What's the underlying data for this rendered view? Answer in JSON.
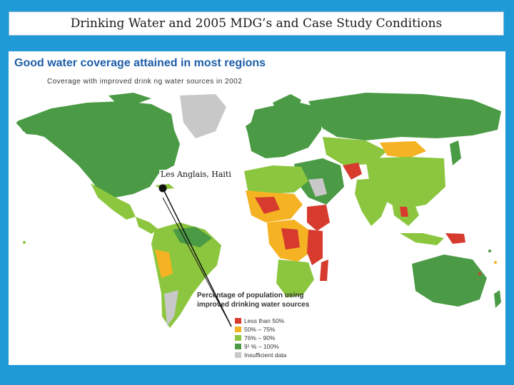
{
  "slide": {
    "title": "Drinking Water and 2005 MDG’s and Case Study Conditions"
  },
  "map": {
    "heading": "Good water coverage attained in most regions",
    "subheading": "Coverage with improved drink ng water sources in 2002",
    "case_study_label": "Les Anglais, Haiti",
    "legend": {
      "title_line1": "Percentage of population using",
      "title_line2": "improved drinking water sources",
      "items": [
        {
          "label": "Less than 50%",
          "color": "#d63b2e"
        },
        {
          "label": "50% – 75%",
          "color": "#f5b324"
        },
        {
          "label": "76% – 90%",
          "color": "#8cc63e"
        },
        {
          "label": "9¹ % – 100%",
          "color": "#4b9a45"
        },
        {
          "label": "Insufficient data",
          "color": "#c8c8c8"
        }
      ]
    }
  }
}
